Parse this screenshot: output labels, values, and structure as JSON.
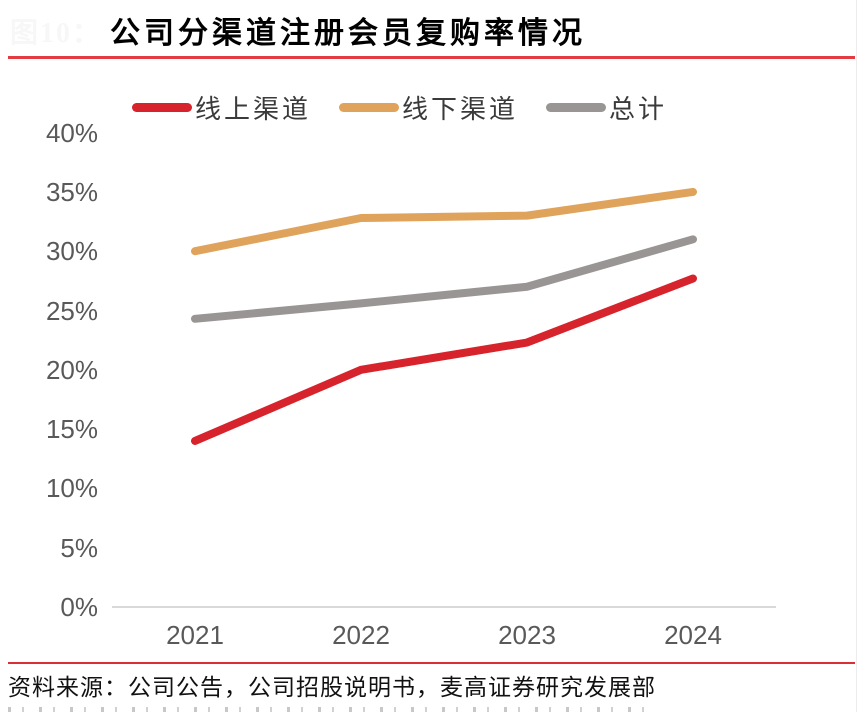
{
  "header": {
    "figure_label": "图10：",
    "title": "公司分渠道注册会员复购率情况"
  },
  "chart_data": {
    "type": "line",
    "title": "公司分渠道注册会员复购率情况",
    "categories": [
      "2021",
      "2022",
      "2023",
      "2024"
    ],
    "series": [
      {
        "name": "线上渠道",
        "color": "#d7232b",
        "values": [
          14,
          20,
          22.3,
          27.7
        ]
      },
      {
        "name": "线下渠道",
        "color": "#dfa35c",
        "values": [
          30,
          32.8,
          33,
          35
        ]
      },
      {
        "name": "总计",
        "color": "#9a9595",
        "values": [
          24.3,
          25.6,
          27,
          31
        ]
      }
    ],
    "xlabel": "",
    "ylabel": "",
    "ylim": [
      0,
      40
    ],
    "ytick_step": 5,
    "ytick_labels": [
      "0%",
      "5%",
      "10%",
      "15%",
      "20%",
      "25%",
      "30%",
      "35%",
      "40%"
    ],
    "grid": false,
    "legend_position": "top"
  },
  "footer": {
    "source": "资料来源：公司公告，公司招股说明书，麦高证券研究发展部"
  },
  "colors": {
    "accent_red": "#e23b41",
    "axis_line": "#d9d9d9",
    "tick_text": "#595959"
  }
}
